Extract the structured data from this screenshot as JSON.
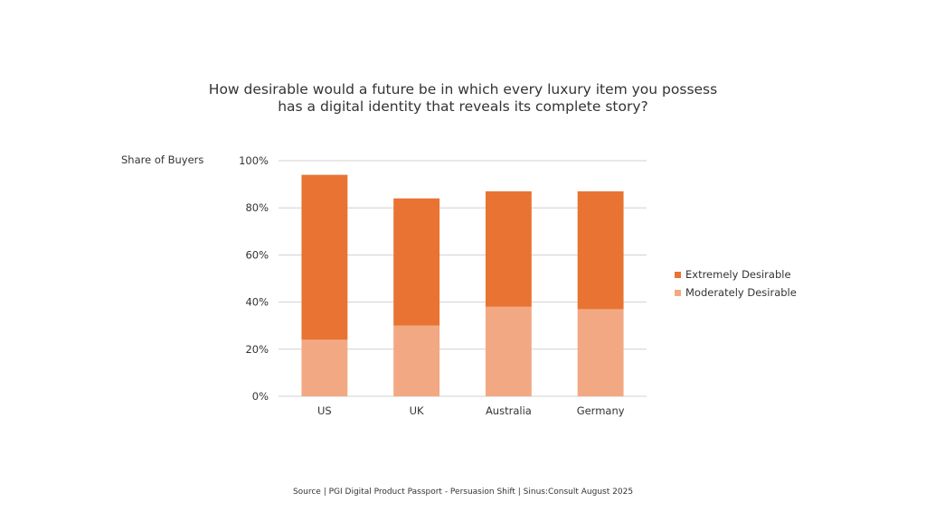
{
  "chart_data": {
    "type": "bar",
    "stacked": true,
    "title_lines": [
      "How desirable would a future be  in which every luxury item you possess",
      "has a digital identity that reveals its complete story?"
    ],
    "ylabel": "Share of Buyers",
    "xlabel": "",
    "categories": [
      "US",
      "UK",
      "Australia",
      "Germany"
    ],
    "ylim": [
      0,
      100
    ],
    "yticks": [
      "0%",
      "20%",
      "40%",
      "60%",
      "80%",
      "100%"
    ],
    "grid": true,
    "legend_position": "right",
    "series": [
      {
        "name": "Moderately Desirable",
        "values": [
          24,
          30,
          38,
          37
        ],
        "color": "#F2A983"
      },
      {
        "name": "Extremely Desirable",
        "values": [
          70,
          54,
          49,
          50
        ],
        "color": "#E87332"
      }
    ],
    "source": "Source | PGI Digital Product Passport  - Persuasion Shift | Sinus:Consult August 2025"
  }
}
